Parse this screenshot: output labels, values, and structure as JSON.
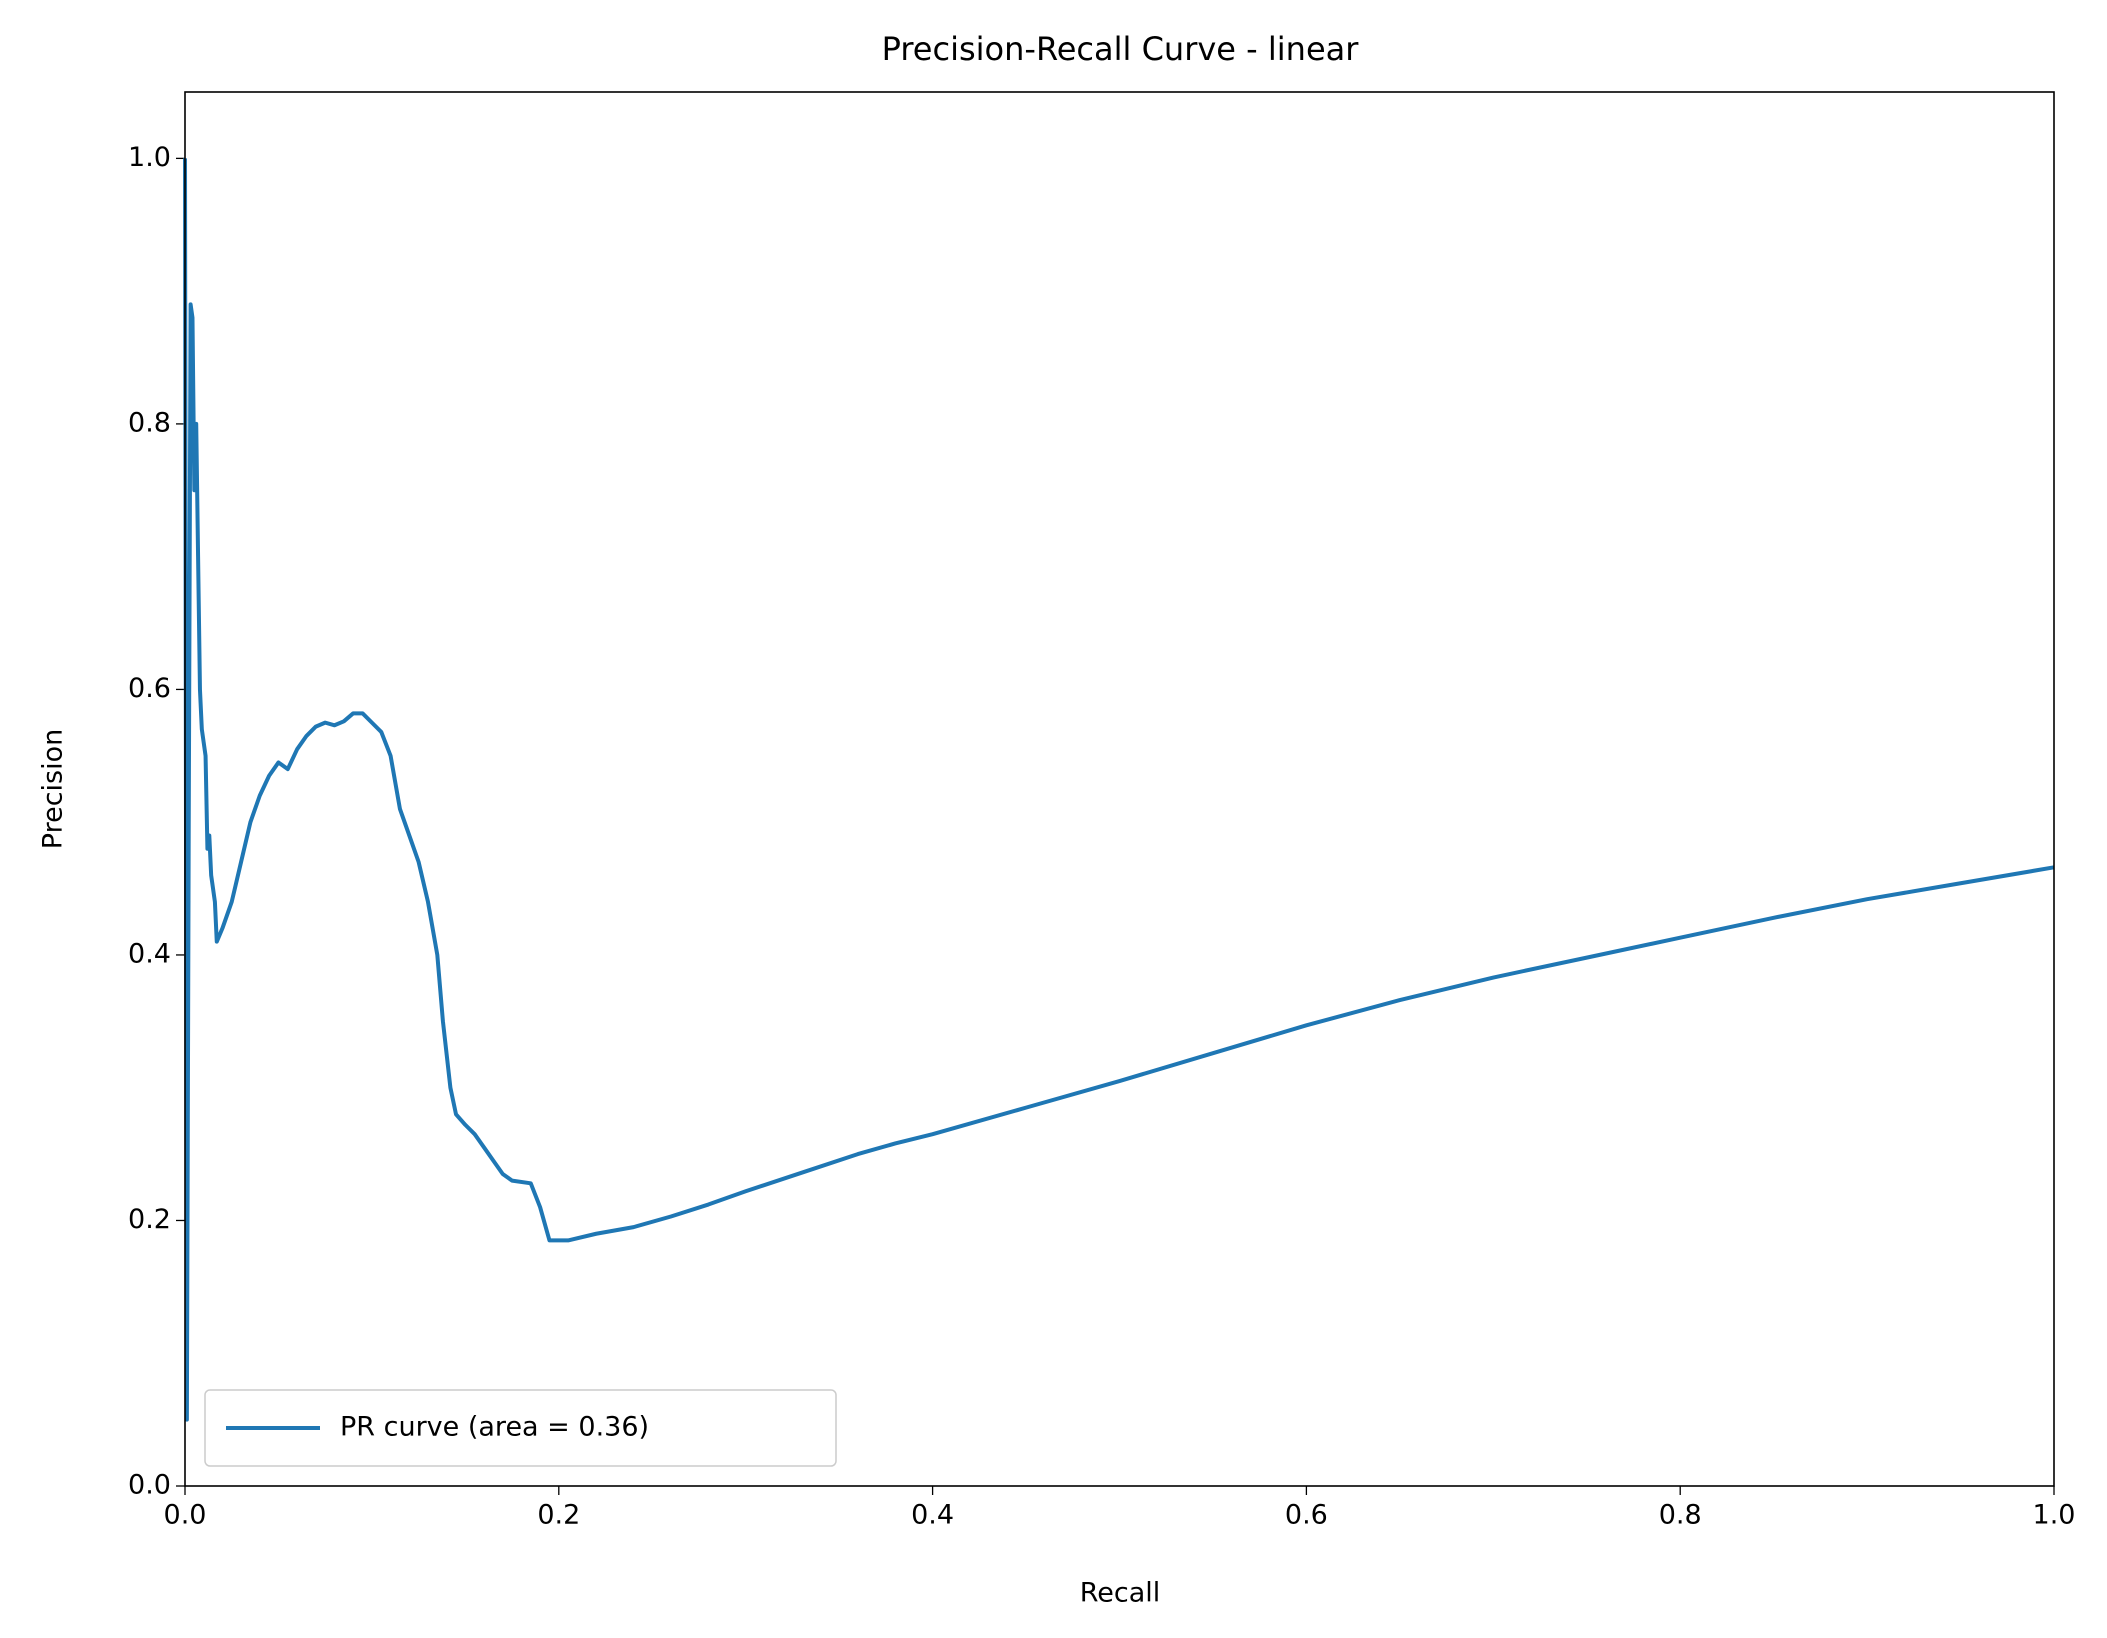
{
  "chart_data": {
    "type": "line",
    "title": "Precision-Recall Curve - linear",
    "xlabel": "Recall",
    "ylabel": "Precision",
    "xlim": [
      0,
      1
    ],
    "ylim": [
      0,
      1.05
    ],
    "xticks": [
      {
        "value": 0,
        "label": "0.0"
      },
      0.2,
      0.4,
      0.6,
      0.8,
      {
        "value": 1,
        "label": "1.0"
      }
    ],
    "yticks": [
      {
        "value": 0,
        "label": "0.0"
      },
      0.2,
      0.4,
      0.6,
      0.8,
      {
        "value": 1,
        "label": "1.0"
      }
    ],
    "legend": "lower left",
    "series": [
      {
        "name": "PR curve (area = 0.36)",
        "color": "#1f77b4",
        "x": [
          0.0,
          0.001,
          0.002,
          0.003,
          0.004,
          0.005,
          0.006,
          0.007,
          0.008,
          0.009,
          0.01,
          0.011,
          0.012,
          0.013,
          0.014,
          0.016,
          0.017,
          0.02,
          0.025,
          0.03,
          0.035,
          0.04,
          0.045,
          0.05,
          0.055,
          0.06,
          0.065,
          0.07,
          0.075,
          0.08,
          0.085,
          0.09,
          0.095,
          0.1,
          0.105,
          0.11,
          0.115,
          0.12,
          0.125,
          0.13,
          0.135,
          0.138,
          0.142,
          0.145,
          0.15,
          0.155,
          0.16,
          0.165,
          0.17,
          0.175,
          0.185,
          0.19,
          0.195,
          0.205,
          0.22,
          0.24,
          0.26,
          0.28,
          0.3,
          0.33,
          0.36,
          0.38,
          0.4,
          0.45,
          0.5,
          0.55,
          0.6,
          0.65,
          0.7,
          0.75,
          0.8,
          0.85,
          0.9,
          0.95,
          1.0
        ],
        "values": [
          1.0,
          0.05,
          0.5,
          0.89,
          0.88,
          0.75,
          0.8,
          0.7,
          0.6,
          0.57,
          0.56,
          0.55,
          0.48,
          0.49,
          0.46,
          0.44,
          0.41,
          0.42,
          0.44,
          0.47,
          0.5,
          0.52,
          0.535,
          0.545,
          0.54,
          0.555,
          0.565,
          0.572,
          0.575,
          0.573,
          0.576,
          0.582,
          0.582,
          0.575,
          0.568,
          0.55,
          0.51,
          0.49,
          0.47,
          0.44,
          0.4,
          0.35,
          0.3,
          0.28,
          0.272,
          0.265,
          0.255,
          0.245,
          0.235,
          0.23,
          0.228,
          0.21,
          0.185,
          0.185,
          0.19,
          0.195,
          0.203,
          0.212,
          0.222,
          0.236,
          0.25,
          0.258,
          0.265,
          0.285,
          0.305,
          0.326,
          0.347,
          0.366,
          0.383,
          0.398,
          0.413,
          0.428,
          0.442,
          0.454,
          0.466
        ]
      }
    ]
  }
}
